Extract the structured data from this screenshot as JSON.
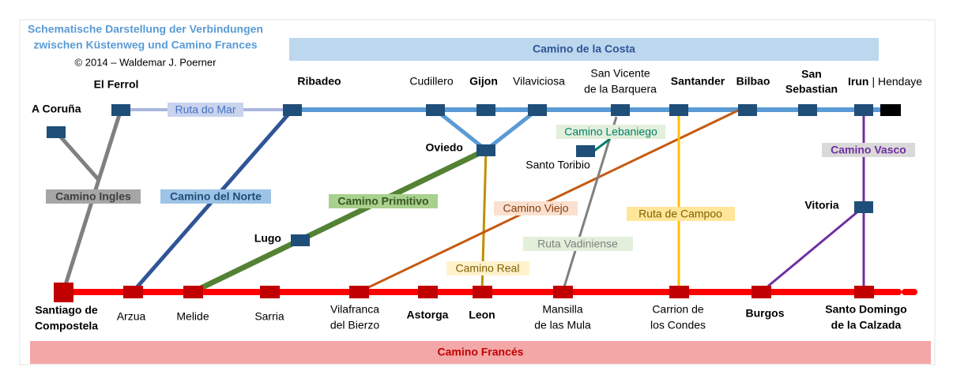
{
  "header": {
    "title_lines": [
      "Schematische Darstellung der Verbindungen",
      "zwischen Küstenweg und Camino Frances"
    ],
    "copyright": "© 2014 – Waldemar J. Poerner"
  },
  "banners": {
    "costa": "Camino de la Costa",
    "frances": "Camino Francés"
  },
  "stations": [
    {
      "lines": [
        "A Coruña"
      ]
    },
    {
      "lines": [
        "El Ferrol"
      ]
    },
    {
      "lines": [
        "Ribadeo"
      ]
    },
    {
      "lines": [
        "Cudillero"
      ]
    },
    {
      "lines": [
        "Gijon"
      ]
    },
    {
      "lines": [
        "Vilaviciosa"
      ]
    },
    {
      "lines": [
        "San Vicente",
        "de la Barquera"
      ]
    },
    {
      "lines": [
        "Santander"
      ]
    },
    {
      "lines": [
        "Bilbao"
      ]
    },
    {
      "lines": [
        "San",
        "Sebastian"
      ]
    },
    {
      "lines": [
        "Irun",
        "| Hendaye"
      ]
    },
    {
      "lines": [
        "Oviedo"
      ]
    },
    {
      "lines": [
        "Santo Toribio"
      ]
    },
    {
      "lines": [
        "Lugo"
      ]
    },
    {
      "lines": [
        "Vitoria"
      ]
    },
    {
      "lines": [
        "Santiago de",
        "Compostela"
      ]
    },
    {
      "lines": [
        "Arzua"
      ]
    },
    {
      "lines": [
        "Melide"
      ]
    },
    {
      "lines": [
        "Sarria"
      ]
    },
    {
      "lines": [
        "Vilafranca",
        "del Bierzo"
      ]
    },
    {
      "lines": [
        "Astorga"
      ]
    },
    {
      "lines": [
        "Leon"
      ]
    },
    {
      "lines": [
        "Mansilla",
        "de las Mula"
      ]
    },
    {
      "lines": [
        "Carrion de",
        "los Condes"
      ]
    },
    {
      "lines": [
        "Burgos"
      ]
    },
    {
      "lines": [
        "Santo Domingo",
        "de la Calzada"
      ]
    }
  ],
  "routes": [
    {
      "label": "Ruta do Mar"
    },
    {
      "label": "Camino Ingles"
    },
    {
      "label": "Camino del Norte"
    },
    {
      "label": "Camino Primitivo"
    },
    {
      "label": "Camino Viejo"
    },
    {
      "label": "Camino Real"
    },
    {
      "label": "Ruta Vadiniense"
    },
    {
      "label": "Camino Lebaniego"
    },
    {
      "label": "Ruta de Campoo"
    },
    {
      "label": "Camino Vasco"
    }
  ]
}
